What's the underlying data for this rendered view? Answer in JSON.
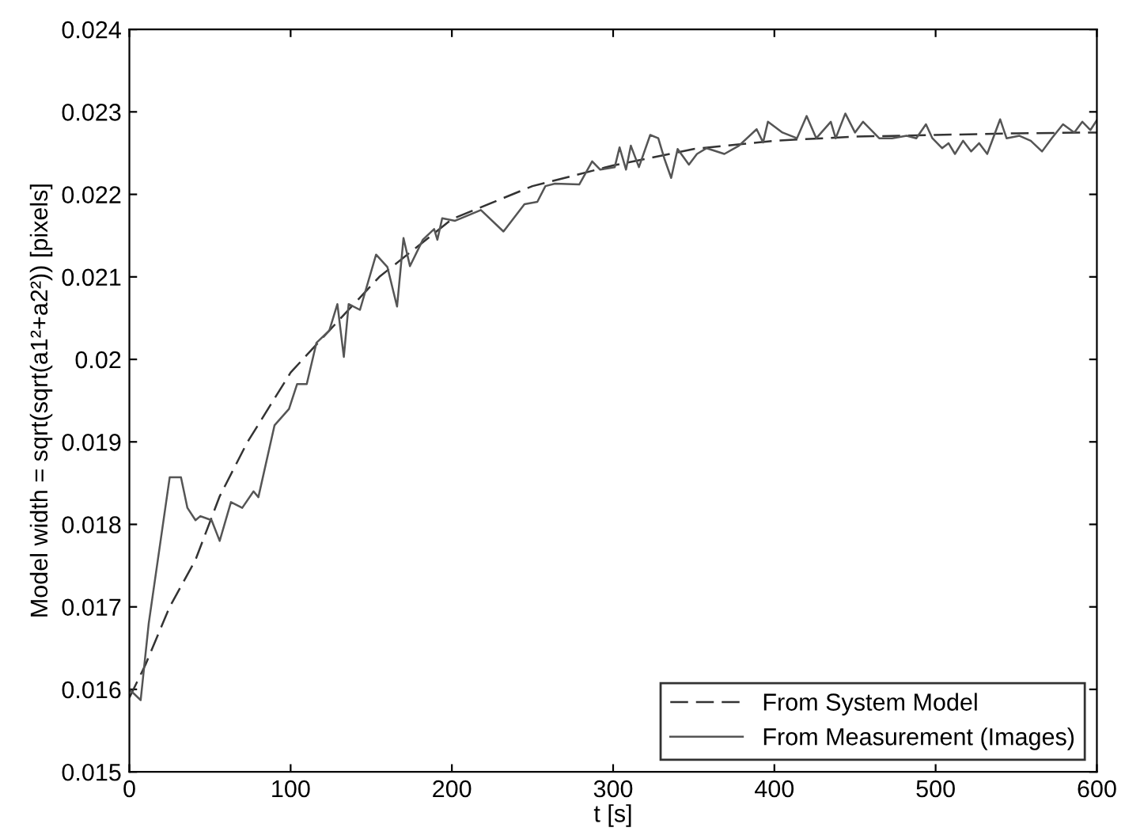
{
  "chart_data": {
    "type": "line",
    "xlabel": "t [s]",
    "ylabel": "Model width = sqrt(sqrt(a1²+a2²)) [pixels]",
    "xlim": [
      0,
      600
    ],
    "xticks": [
      0,
      100,
      200,
      300,
      400,
      500,
      600
    ],
    "ylim": [
      0.015,
      0.024
    ],
    "yticks": [
      0.015,
      0.016,
      0.017,
      0.018,
      0.019,
      0.02,
      0.021,
      0.022,
      0.023,
      0.024
    ],
    "grid": false,
    "legend": "bottom right",
    "series": [
      {
        "name": "From System Model",
        "color": "#333333",
        "line_style": "dashed",
        "x": [
          0,
          10,
          25,
          41,
          56,
          73,
          100,
          124,
          155,
          200,
          250,
          300,
          350,
          400,
          450,
          500,
          550,
          600
        ],
        "values": [
          0.0159,
          0.0163,
          0.017,
          0.01757,
          0.01834,
          0.01899,
          0.01984,
          0.02035,
          0.021,
          0.0217,
          0.0221,
          0.02235,
          0.02255,
          0.02265,
          0.0227,
          0.02272,
          0.02274,
          0.02275
        ]
      },
      {
        "name": "From Measurement (Images)",
        "color": "#555555",
        "line_style": "solid",
        "x": [
          0,
          7,
          12,
          25,
          32,
          36,
          41,
          44,
          51,
          56,
          63,
          70,
          77,
          80,
          90,
          99,
          104,
          110,
          116,
          124,
          129,
          133,
          136,
          143,
          153,
          160,
          166,
          170,
          174,
          182,
          189,
          191,
          194,
          202,
          218,
          232,
          245,
          253,
          258,
          264,
          279,
          287,
          292,
          301,
          304,
          308,
          311,
          316,
          323,
          328,
          332,
          336,
          340,
          347,
          352,
          358,
          369,
          378,
          389,
          393,
          396,
          405,
          414,
          420,
          426,
          435,
          438,
          444,
          450,
          455,
          465,
          473,
          482,
          488,
          494,
          498,
          504,
          508,
          512,
          517,
          522,
          527,
          532,
          540,
          544,
          552,
          559,
          566,
          572,
          579,
          586,
          591,
          596,
          600
        ],
        "values": [
          0.016,
          0.01587,
          0.0168,
          0.01857,
          0.01857,
          0.0182,
          0.01805,
          0.0181,
          0.01805,
          0.0178,
          0.01827,
          0.0182,
          0.0184,
          0.01833,
          0.0192,
          0.0194,
          0.0197,
          0.0197,
          0.0202,
          0.02035,
          0.02067,
          0.02003,
          0.02067,
          0.0206,
          0.02127,
          0.02112,
          0.02064,
          0.02147,
          0.02113,
          0.02145,
          0.02158,
          0.02145,
          0.02171,
          0.02168,
          0.02181,
          0.02155,
          0.02188,
          0.02191,
          0.0221,
          0.02213,
          0.02212,
          0.0224,
          0.0223,
          0.02233,
          0.02257,
          0.0223,
          0.02259,
          0.02233,
          0.02272,
          0.02268,
          0.02242,
          0.0222,
          0.02255,
          0.02236,
          0.02249,
          0.02256,
          0.02249,
          0.02259,
          0.02279,
          0.02263,
          0.02288,
          0.02275,
          0.02268,
          0.02295,
          0.02268,
          0.02288,
          0.02268,
          0.02298,
          0.02275,
          0.02288,
          0.02268,
          0.02268,
          0.02271,
          0.02268,
          0.02285,
          0.02268,
          0.02256,
          0.02262,
          0.02249,
          0.02265,
          0.02252,
          0.02262,
          0.02249,
          0.02291,
          0.02268,
          0.02271,
          0.02265,
          0.02252,
          0.02268,
          0.02285,
          0.02275,
          0.02288,
          0.02278,
          0.0229
        ]
      }
    ]
  }
}
